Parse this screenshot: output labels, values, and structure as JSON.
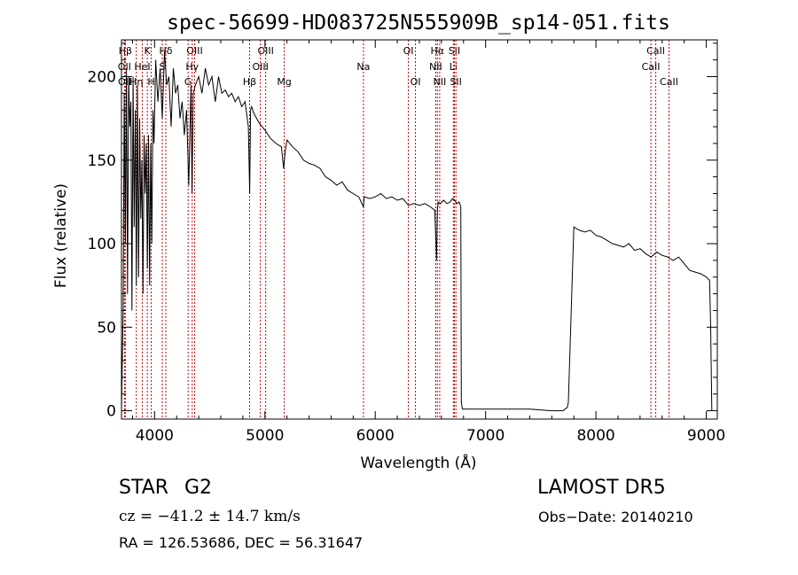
{
  "chart_data": {
    "type": "line",
    "title": "spec-56699-HD083725N555909B_sp14-051.fits",
    "xlabel": "Wavelength (Å)",
    "ylabel": "Flux (relative)",
    "xlim": [
      3700,
      9100
    ],
    "ylim": [
      -5,
      222
    ],
    "x_ticks": [
      4000,
      5000,
      6000,
      7000,
      8000,
      9000
    ],
    "y_ticks": [
      0,
      50,
      100,
      150,
      200
    ],
    "grid": false,
    "line_color": "#000000",
    "marker_color": "#cc0000",
    "series": [
      {
        "x": [
          3700,
          3715,
          3725,
          3735,
          3745,
          3755,
          3765,
          3775,
          3785,
          3795,
          3805,
          3815,
          3825,
          3835,
          3845,
          3855,
          3865,
          3875,
          3885,
          3895,
          3905,
          3915,
          3925,
          3935,
          3945,
          3955,
          3965,
          3975,
          3985,
          3995,
          4010,
          4030,
          4050,
          4070,
          4090,
          4110,
          4130,
          4150,
          4170,
          4190,
          4210,
          4230,
          4250,
          4270,
          4290,
          4310,
          4330,
          4340,
          4350,
          4370,
          4400,
          4430,
          4460,
          4490,
          4520,
          4550,
          4580,
          4610,
          4640,
          4670,
          4700,
          4730,
          4760,
          4790,
          4820,
          4850,
          4862,
          4870,
          4880,
          4900,
          4950,
          5000,
          5050,
          5100,
          5150,
          5170,
          5183,
          5200,
          5250,
          5300,
          5350,
          5400,
          5450,
          5500,
          5550,
          5600,
          5650,
          5700,
          5750,
          5800,
          5850,
          5893,
          5900,
          5950,
          6000,
          6050,
          6100,
          6150,
          6200,
          6250,
          6300,
          6350,
          6400,
          6450,
          6500,
          6540,
          6555,
          6563,
          6570,
          6590,
          6620,
          6650,
          6680,
          6700,
          6720,
          6740,
          6760,
          6775,
          6780,
          6790,
          7000,
          7200,
          7400,
          7600,
          7700,
          7740,
          7750,
          7800,
          7850,
          7900,
          7950,
          8000,
          8050,
          8100,
          8150,
          8200,
          8250,
          8300,
          8350,
          8400,
          8450,
          8500,
          8550,
          8600,
          8650,
          8700,
          8750,
          8800,
          8850,
          8900,
          8950,
          9000,
          9030,
          9040,
          9050
        ],
        "y": [
          0,
          60,
          190,
          100,
          205,
          70,
          200,
          170,
          185,
          60,
          200,
          110,
          180,
          75,
          195,
          80,
          175,
          115,
          150,
          70,
          165,
          130,
          160,
          85,
          165,
          75,
          160,
          100,
          180,
          160,
          210,
          185,
          205,
          175,
          215,
          195,
          200,
          170,
          205,
          190,
          195,
          175,
          185,
          165,
          180,
          135,
          195,
          130,
          190,
          195,
          200,
          190,
          205,
          195,
          200,
          185,
          200,
          190,
          192,
          188,
          190,
          185,
          188,
          182,
          185,
          170,
          130,
          180,
          182,
          178,
          172,
          168,
          163,
          160,
          158,
          145,
          155,
          162,
          158,
          155,
          150,
          148,
          147,
          145,
          140,
          138,
          135,
          137,
          132,
          130,
          128,
          122,
          128,
          127,
          128,
          130,
          127,
          128,
          126,
          127,
          123,
          124,
          123,
          124,
          122,
          120,
          90,
          120,
          125,
          124,
          126,
          124,
          125,
          127,
          126,
          124,
          125,
          122,
          5,
          1,
          1,
          1,
          1,
          0,
          0,
          2,
          5,
          110,
          108,
          107,
          108,
          105,
          104,
          102,
          100,
          99,
          98,
          100,
          96,
          97,
          94,
          92,
          95,
          93,
          92,
          90,
          92,
          88,
          84,
          83,
          82,
          80,
          78,
          50,
          0
        ]
      }
    ],
    "line_markers": [
      {
        "label": "Hβ",
        "x": 3735,
        "row": 1
      },
      {
        "label": "OII",
        "x": 3727,
        "row": 2
      },
      {
        "label": "OII",
        "x": 3729,
        "row": 3
      },
      {
        "label": "K",
        "x": 3934,
        "row": 1
      },
      {
        "label": "HeI",
        "x": 3889,
        "row": 2
      },
      {
        "label": "Hη",
        "x": 3835,
        "row": 3
      },
      {
        "label": "Hδ",
        "x": 4102,
        "row": 1
      },
      {
        "label": "S",
        "x": 4070,
        "row": 2
      },
      {
        "label": "H",
        "x": 3969,
        "row": 3
      },
      {
        "label": "OIII",
        "x": 4363,
        "row": 1
      },
      {
        "label": "Hγ",
        "x": 4341,
        "row": 2
      },
      {
        "label": "G",
        "x": 4304,
        "row": 3
      },
      {
        "label": "OIII",
        "x": 5007,
        "row": 1
      },
      {
        "label": "OIII",
        "x": 4959,
        "row": 2
      },
      {
        "label": "Hβ",
        "x": 4861,
        "row": 3
      },
      {
        "label": "Mg",
        "x": 5175,
        "row": 3
      },
      {
        "label": "Na",
        "x": 5893,
        "row": 2
      },
      {
        "label": "OI",
        "x": 6300,
        "row": 1
      },
      {
        "label": "OI",
        "x": 6364,
        "row": 3
      },
      {
        "label": "Hα",
        "x": 6563,
        "row": 1
      },
      {
        "label": "NII",
        "x": 6548,
        "row": 2
      },
      {
        "label": "NII",
        "x": 6584,
        "row": 3
      },
      {
        "label": "SII",
        "x": 6717,
        "row": 1
      },
      {
        "label": "Li",
        "x": 6708,
        "row": 2
      },
      {
        "label": "SII",
        "x": 6731,
        "row": 3
      },
      {
        "label": "CaII",
        "x": 8542,
        "row": 1
      },
      {
        "label": "CaII",
        "x": 8498,
        "row": 2
      },
      {
        "label": "CaII",
        "x": 8662,
        "row": 3
      }
    ]
  },
  "info": {
    "class": "STAR",
    "subclass": "G2",
    "survey": "LAMOST  DR5",
    "cz": "cz = −41.2 ± 14.7 km/s",
    "obs_date": "Obs−Date: 20140210",
    "radec": "RA = 126.53686, DEC =  56.31647"
  }
}
